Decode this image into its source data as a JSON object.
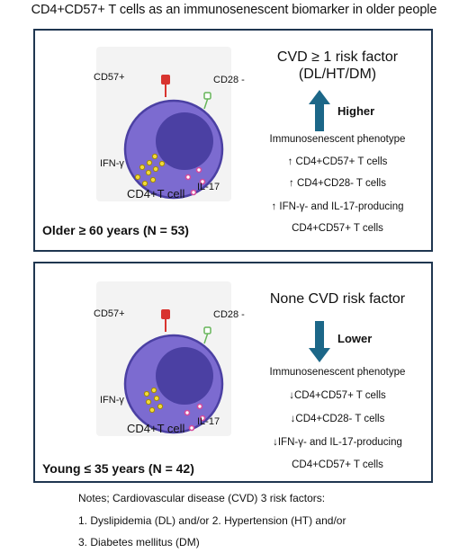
{
  "title": "CD4+CD57+ T cells as an immunosenescent biomarker in older people",
  "colors": {
    "border": "#1f3650",
    "cell_outer": "#7c6bd0",
    "cell_nucleus": "#4b40a3",
    "cd57": "#d8342f",
    "cd28": "#67b55a",
    "ifn_dot": "#e0c11a",
    "il17_dot": "#e567b4",
    "arrow": "#1c6788"
  },
  "panels": [
    {
      "cell_labels": {
        "cd57": "CD57+",
        "cd28": "CD28 -",
        "ifn": "IFN-γ",
        "il17": "IL-17",
        "cell": "CD4+T cell"
      },
      "age_label": "Older ≥ 60 years  (N = 53)",
      "risk_title": "CVD ≥ 1 risk factor\n(DL/HT/DM)",
      "direction": "Higher",
      "arrow": "up",
      "phenotype_lines": [
        "Immunosenescent phenotype",
        "↑ CD4+CD57+ T cells",
        "↑ CD4+CD28- T cells",
        "↑ IFN-γ- and IL-17-producing",
        "CD4+CD57+ T cells"
      ]
    },
    {
      "cell_labels": {
        "cd57": "CD57+",
        "cd28": "CD28 -",
        "ifn": "IFN-γ",
        "il17": "IL-17",
        "cell": "CD4+T cell"
      },
      "age_label": "Young ≤ 35 years (N = 42)",
      "risk_title": "None CVD risk factor",
      "direction": "Lower",
      "arrow": "down",
      "phenotype_lines": [
        "Immunosenescent phenotype",
        "↓CD4+CD57+ T cells",
        "↓CD4+CD28- T cells",
        "↓IFN-γ- and IL-17-producing",
        "CD4+CD57+ T cells"
      ]
    }
  ],
  "notes": [
    "Notes; Cardiovascular disease (CVD) 3 risk factors:",
    "1. Dyslipidemia (DL) and/or 2. Hypertension (HT) and/or",
    "3. Diabetes mellitus (DM)"
  ]
}
